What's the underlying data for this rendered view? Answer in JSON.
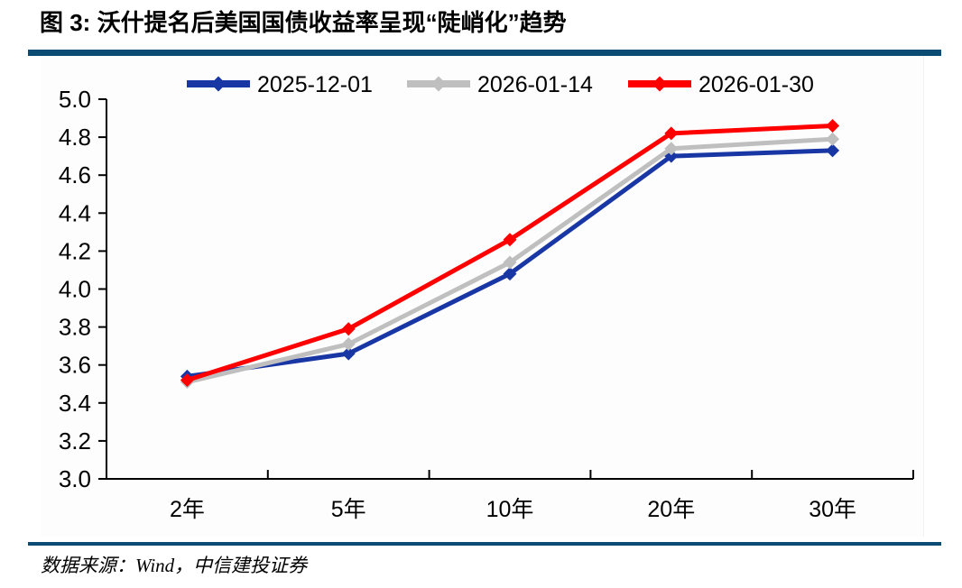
{
  "header": {
    "title": "图 3: 沃什提名后美国国债收益率呈现“陡峭化”趋势"
  },
  "footer": {
    "source": "数据来源：Wind，中信建投证券"
  },
  "colors": {
    "accent_bar": "#0a4c74",
    "axis": "#000000",
    "series_blue": "#1936a5",
    "series_gray": "#bfbfbf",
    "series_red": "#ff0000"
  },
  "chart_data": {
    "type": "line",
    "title": "图 3: 沃什提名后美国国债收益率呈现“陡峭化”趋势",
    "categories": [
      "2年",
      "5年",
      "10年",
      "20年",
      "30年"
    ],
    "series": [
      {
        "name": "2025-12-01",
        "color": "#1936a5",
        "values": [
          3.54,
          3.66,
          4.08,
          4.7,
          4.73
        ]
      },
      {
        "name": "2026-01-14",
        "color": "#bfbfbf",
        "values": [
          3.51,
          3.71,
          4.14,
          4.74,
          4.79
        ]
      },
      {
        "name": "2026-01-30",
        "color": "#ff0000",
        "values": [
          3.52,
          3.79,
          4.26,
          4.82,
          4.86
        ]
      }
    ],
    "xlabel": "",
    "ylabel": "",
    "ylim": [
      3.0,
      5.0
    ],
    "ytick_step": 0.2,
    "yticks": [
      "3.0",
      "3.2",
      "3.4",
      "3.6",
      "3.8",
      "4.0",
      "4.2",
      "4.4",
      "4.6",
      "4.8",
      "5.0"
    ],
    "grid": false,
    "legend_position": "top",
    "marker": "diamond"
  }
}
